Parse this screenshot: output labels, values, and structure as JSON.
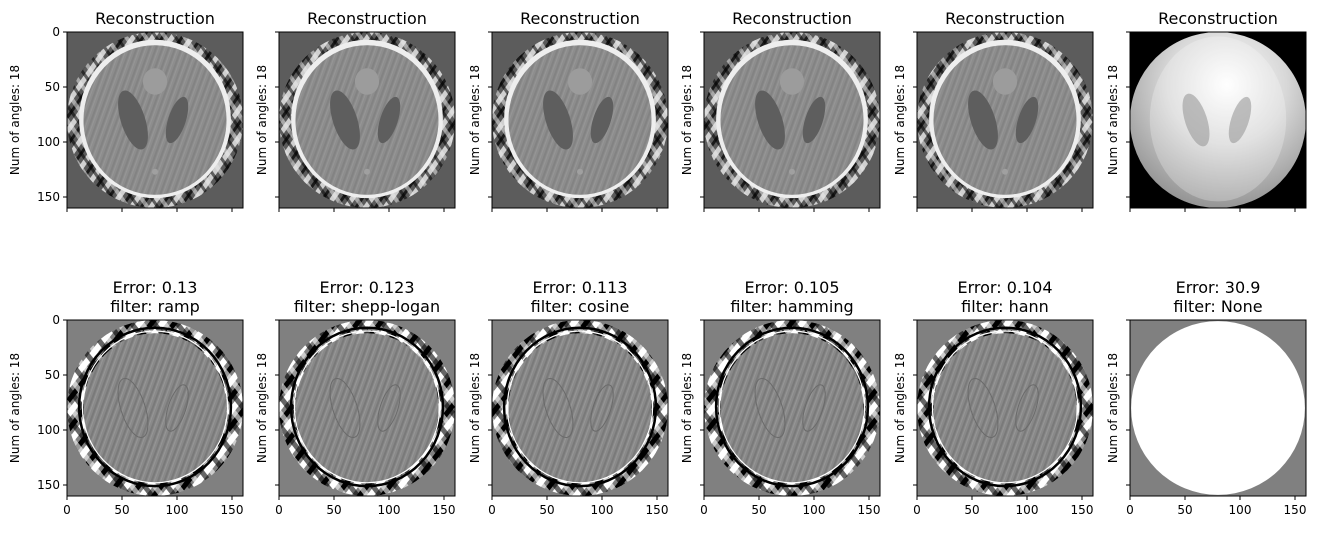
{
  "chart_data": {
    "type": "heatmap",
    "colormap": "gray",
    "image_extent": {
      "x": [
        0,
        160
      ],
      "y": [
        0,
        160
      ]
    },
    "x_ticks": [
      0,
      50,
      100,
      150
    ],
    "y_ticks": [
      0,
      50,
      100,
      150
    ],
    "y_inverted": true,
    "grid": false,
    "legend": "none",
    "ylabel": "Num of angles: 18",
    "rows": [
      {
        "row_name": "reconstruction",
        "panels": [
          {
            "title": "Reconstruction",
            "filter": "ramp"
          },
          {
            "title": "Reconstruction",
            "filter": "shepp-logan"
          },
          {
            "title": "Reconstruction",
            "filter": "cosine"
          },
          {
            "title": "Reconstruction",
            "filter": "hamming"
          },
          {
            "title": "Reconstruction",
            "filter": "hann"
          },
          {
            "title": "Reconstruction",
            "filter": "None"
          }
        ]
      },
      {
        "row_name": "error",
        "panels": [
          {
            "title_line1": "Error: 0.13",
            "title_line2": "filter: ramp",
            "error": 0.13,
            "filter": "ramp"
          },
          {
            "title_line1": "Error: 0.123",
            "title_line2": "filter: shepp-logan",
            "error": 0.123,
            "filter": "shepp-logan"
          },
          {
            "title_line1": "Error: 0.113",
            "title_line2": "filter: cosine",
            "error": 0.113,
            "filter": "cosine"
          },
          {
            "title_line1": "Error: 0.105",
            "title_line2": "filter: hamming",
            "error": 0.105,
            "filter": "hamming"
          },
          {
            "title_line1": "Error: 0.104",
            "title_line2": "filter: hann",
            "error": 0.104,
            "filter": "hann"
          },
          {
            "title_line1": "Error: 30.9",
            "title_line2": "filter: None",
            "error": 30.9,
            "filter": "None"
          }
        ]
      }
    ]
  }
}
